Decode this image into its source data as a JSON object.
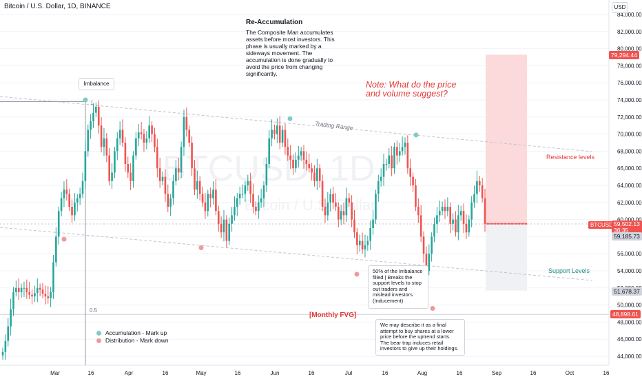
{
  "header": {
    "title": "Bitcoin / U.S. Dollar, 1D, BINANCE",
    "currency_button": "USD"
  },
  "watermark": {
    "symbol": "BTCUSD, 1D",
    "name": "Bitcoin / U.S. Dollar"
  },
  "annotations": {
    "reaccum_title": "Re-Accumulation",
    "reaccum_body": "The Composite Man accumulates assets before most investors. This phase is usually marked by a sideways movement. The accumulation is done gradually to avoid the price from changing significantly.",
    "imbalance": "Imbalance",
    "note": "Note: What do the price and volume suggest?",
    "trading_range": "Trading Range",
    "resistance": "Resistance levels",
    "support": "Support Levels",
    "monthly_fvg": "[Monthly FVG]",
    "imbalance_filled": "50% of the Imbalance filled | Breaks the support levels to stop out traders and mislead investors (Inducement)",
    "bear_trap": "We may describe it as a final attempt to buy shares at a lower price before the uptrend starts. The bear trap induces retail investors to give up their holdings.",
    "fib_1": "1",
    "fib_05": "0.5",
    "key_accum": "Accumulation - Mark up",
    "key_dist": "Distribution - Mark down"
  },
  "price_labels": {
    "top": "79,294.44",
    "btc_tag": "BTCUSD",
    "btc_price": "59,502.13",
    "countdown": "36:35",
    "p2": "59,185.73",
    "p3": "51,678.37",
    "p4": "48,898.61"
  },
  "colors": {
    "up": "#26a69a",
    "down": "#ef5350",
    "teal_marker": "#80cbc4",
    "red_marker": "#ef9a9a",
    "zone_red": "#fcdadb",
    "zone_grey": "#f0f1f4",
    "grid": "#f0f3fa"
  },
  "chart_data": {
    "type": "candlestick",
    "title": "Bitcoin / U.S. Dollar, 1D, BINANCE",
    "yaxis_ticks": [
      "84,000.00",
      "82,000.00",
      "80,000.00",
      "78,000.00",
      "76,000.00",
      "74,000.00",
      "72,000.00",
      "70,000.00",
      "68,000.00",
      "66,000.00",
      "64,000.00",
      "62,000.00",
      "60,000.00",
      "58,000.00",
      "56,000.00",
      "54,000.00",
      "52,000.00",
      "50,000.00",
      "48,000.00",
      "46,000.00",
      "44,000.00"
    ],
    "ylim": [
      43000,
      85000
    ],
    "xaxis_ticks": [
      "Mar",
      "16",
      "Apr",
      "16",
      "May",
      "16",
      "Jun",
      "16",
      "Jul",
      "16",
      "Aug",
      "16",
      "Sep",
      "16",
      "Oct",
      "16"
    ],
    "last_price": 59502.13,
    "key_levels": {
      "fib_1": 73800,
      "fib_05": 48898.61,
      "risk_zone_top": 79294.44,
      "entry": 59502.13,
      "stop_zone_bottom": 51678.37
    },
    "close_series": [
      44500,
      45800,
      47500,
      49500,
      51500,
      52000,
      51500,
      52000,
      52000,
      51500,
      51200,
      51000,
      51400,
      52000,
      51800,
      51300,
      51000,
      50800,
      51500,
      55000,
      58000,
      61000,
      62500,
      63500,
      63000,
      61500,
      60500,
      62000,
      62500,
      63000,
      64500,
      68000,
      70500,
      71500,
      72500,
      73200,
      71000,
      68500,
      69500,
      67500,
      64500,
      65500,
      68000,
      69500,
      70500,
      69000,
      66500,
      65500,
      64500,
      67500,
      69500,
      70200,
      70000,
      69000,
      69500,
      71000,
      70000,
      68500,
      66000,
      64500,
      65000,
      63000,
      61500,
      62500,
      64500,
      66000,
      65500,
      68500,
      72000,
      70500,
      69000,
      66000,
      63500,
      64500,
      63000,
      62000,
      61000,
      63000,
      62500,
      63500,
      61000,
      59500,
      58500,
      60000,
      57500,
      59500,
      60500,
      61500,
      62500,
      63000,
      63000,
      64000,
      64500,
      63000,
      61500,
      61000,
      62000,
      62500,
      64000,
      66500,
      69500,
      70500,
      70000,
      71000,
      69000,
      70500,
      68500,
      67500,
      67000,
      66000,
      67000,
      67500,
      68000,
      67000,
      66500,
      66000,
      65500,
      64500,
      66000,
      64500,
      61500,
      60500,
      62000,
      63000,
      62000,
      61500,
      60000,
      61000,
      60500,
      62500,
      62000,
      60000,
      58500,
      57000,
      57500,
      56500,
      57000,
      57500,
      59000,
      60000,
      63000,
      64500,
      65000,
      66500,
      66500,
      67500,
      66000,
      68500,
      67500,
      68000,
      68500,
      69000,
      66000,
      65000,
      64000,
      61500,
      60500,
      58000,
      56000,
      54000,
      56000,
      58000,
      59500,
      60500,
      61000,
      61500,
      61000,
      61500,
      59500,
      60000,
      58500,
      60500,
      61000,
      59500,
      58500,
      60000,
      62000,
      63000,
      64500,
      64000,
      62500,
      59500
    ]
  }
}
